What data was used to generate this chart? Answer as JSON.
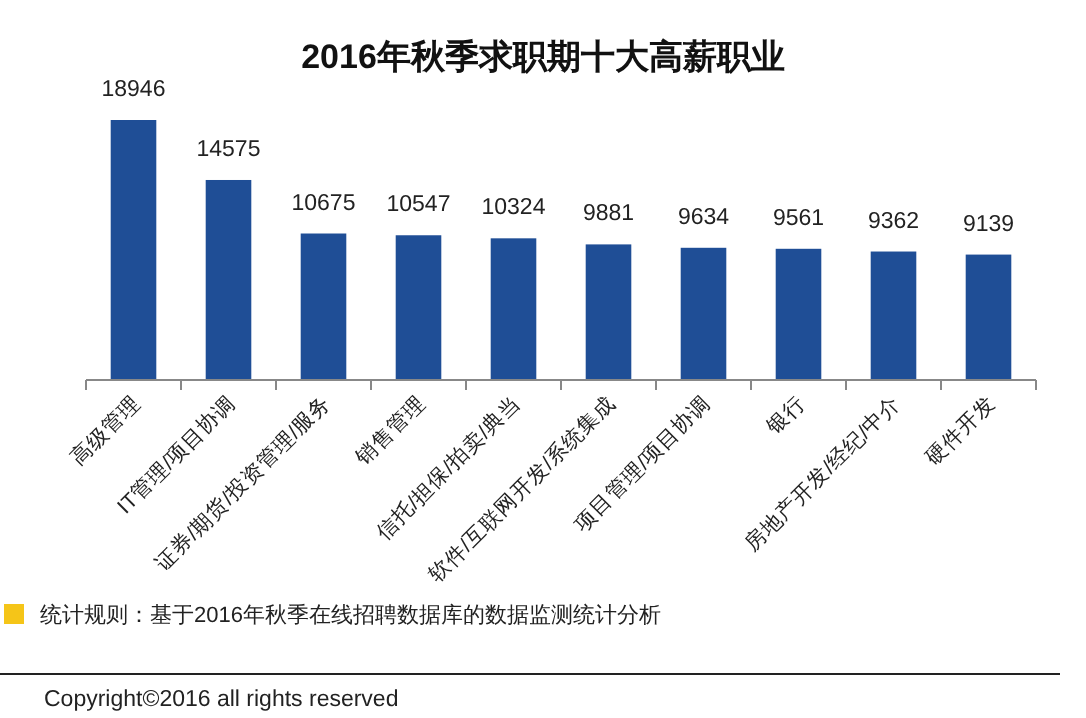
{
  "chart_data": {
    "type": "bar",
    "title": "2016年秋季求职期十大高薪职业",
    "categories": [
      "高级管理",
      "IT管理/项目协调",
      "证券/期货/投资管理/服务",
      "销售管理",
      "信托/担保/拍卖/典当",
      "软件/互联网开发/系统集成",
      "项目管理/项目协调",
      "银行",
      "房地产开发/经纪/中介",
      "硬件开发"
    ],
    "values": [
      18946,
      14575,
      10675,
      10547,
      10324,
      9881,
      9634,
      9561,
      9362,
      9139
    ],
    "color": "#1f4e96",
    "data_labels": true,
    "annotations": [
      "统计规则：基于2016年秋季在线招聘数据库的数据监测统计分析",
      "Copyright©2016 all rights reserved"
    ]
  }
}
